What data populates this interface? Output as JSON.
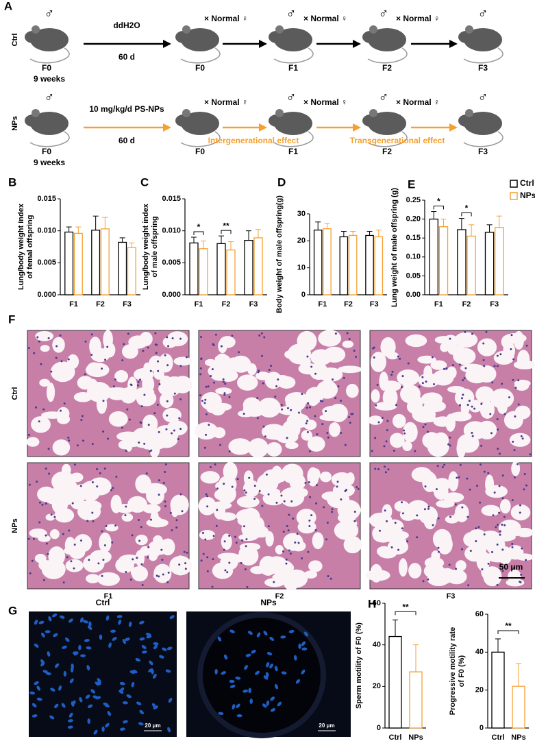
{
  "diagram": {
    "label": "A",
    "male": "♂",
    "cross": "× Normal ♀",
    "rows": [
      {
        "group": "Ctrl",
        "treatment": "ddH2O",
        "duration": "60 d",
        "start": "F0",
        "age": "9 weeks",
        "generations": [
          "F0",
          "F1",
          "F2",
          "F3"
        ]
      },
      {
        "group": "NPs",
        "treatment": "10 mg/kg/d PS-NPs",
        "duration": "60 d",
        "start": "F0",
        "age": "9 weeks",
        "generations": [
          "F0",
          "F1",
          "F2",
          "F3"
        ],
        "effects": [
          "Intergenerational effect",
          "Transgenerational effect"
        ]
      }
    ]
  },
  "chart_data": [
    {
      "type": "bar",
      "label": "B",
      "y_label": [
        "Lung/body weight index",
        "of femal offspring"
      ],
      "categories": [
        "F1",
        "F2",
        "F3"
      ],
      "series": [
        {
          "name": "Ctrl",
          "color": "#000000",
          "values": [
            0.0098,
            0.0101,
            0.0082
          ],
          "errors": [
            0.0008,
            0.0022,
            0.0007
          ]
        },
        {
          "name": "NPs",
          "color": "#f5a030",
          "values": [
            0.0096,
            0.0103,
            0.0074
          ],
          "errors": [
            0.001,
            0.0018,
            0.0007
          ]
        }
      ],
      "ylim": [
        0,
        0.015
      ],
      "yticks": [
        {
          "value": 0,
          "label": "0.000"
        },
        {
          "value": 0.005,
          "label": "0.005"
        },
        {
          "value": 0.01,
          "label": "0.010"
        },
        {
          "value": 0.015,
          "label": "0.015"
        }
      ]
    },
    {
      "type": "bar",
      "label": "C",
      "y_label": [
        "Lung/body weight index",
        "of male offspring"
      ],
      "categories": [
        "F1",
        "F2",
        "F3"
      ],
      "series": [
        {
          "name": "Ctrl",
          "color": "#000000",
          "values": [
            0.0081,
            0.008,
            0.0085
          ],
          "errors": [
            0.0009,
            0.0012,
            0.0015
          ]
        },
        {
          "name": "NPs",
          "color": "#f5a030",
          "values": [
            0.0072,
            0.007,
            0.0089
          ],
          "errors": [
            0.0012,
            0.0013,
            0.0013
          ]
        }
      ],
      "significance": [
        "*",
        "**",
        null
      ],
      "ylim": [
        0,
        0.015
      ],
      "yticks": [
        {
          "value": 0,
          "label": "0.000"
        },
        {
          "value": 0.005,
          "label": "0.005"
        },
        {
          "value": 0.01,
          "label": "0.010"
        },
        {
          "value": 0.015,
          "label": "0.015"
        }
      ]
    },
    {
      "type": "bar",
      "label": "D",
      "y_label": [
        "Body weight of male offspring(g)"
      ],
      "categories": [
        "F1",
        "F2",
        "F3"
      ],
      "series": [
        {
          "name": "Ctrl",
          "color": "#000000",
          "values": [
            24,
            21.5,
            22
          ],
          "errors": [
            3,
            2,
            1.5
          ]
        },
        {
          "name": "NPs",
          "color": "#f5a030",
          "values": [
            24.5,
            22,
            21.5
          ],
          "errors": [
            2,
            1.5,
            2.5
          ]
        }
      ],
      "ylim": [
        0,
        30
      ],
      "yticks": [
        0,
        10,
        20,
        30
      ]
    },
    {
      "type": "bar",
      "label": "E",
      "y_label": [
        "Lung weight of male offspring (g)"
      ],
      "categories": [
        "F1",
        "F2",
        "F3"
      ],
      "series": [
        {
          "name": "Ctrl",
          "color": "#000000",
          "values": [
            0.2,
            0.172,
            0.165
          ],
          "errors": [
            0.02,
            0.03,
            0.02
          ]
        },
        {
          "name": "NPs",
          "color": "#f5a030",
          "values": [
            0.18,
            0.155,
            0.178
          ],
          "errors": [
            0.02,
            0.03,
            0.03
          ]
        }
      ],
      "significance": [
        "*",
        "*",
        null
      ],
      "legend": "top-right",
      "ylim": [
        0,
        0.25
      ],
      "yticks": [
        {
          "value": 0,
          "label": "0.00"
        },
        {
          "value": 0.05,
          "label": "0.05"
        },
        {
          "value": 0.1,
          "label": "0.10"
        },
        {
          "value": 0.15,
          "label": "0.15"
        },
        {
          "value": 0.2,
          "label": "0.20"
        },
        {
          "value": 0.25,
          "label": "0.25"
        }
      ]
    },
    {
      "type": "pairbar",
      "label": "H",
      "y_label": [
        "Sperm motility of F0 (%)"
      ],
      "categories": [
        "Ctrl",
        "NPs"
      ],
      "values": [
        44,
        27
      ],
      "errors": [
        8,
        13
      ],
      "colors": [
        "#000000",
        "#f5a030"
      ],
      "significance": "**",
      "ylim": [
        0,
        60
      ],
      "yticks": [
        0,
        20,
        40,
        60
      ]
    },
    {
      "type": "pairbar",
      "y_label": [
        "Progressive motility rate",
        "of F0 (%)"
      ],
      "categories": [
        "Ctrl",
        "NPs"
      ],
      "values": [
        40,
        22
      ],
      "errors": [
        7,
        12
      ],
      "colors": [
        "#000000",
        "#f5a030"
      ],
      "significance": "**",
      "ylim": [
        0,
        60
      ],
      "yticks": [
        0,
        20,
        40,
        60
      ]
    }
  ],
  "histology": {
    "label": "F",
    "rows": [
      "Ctrl",
      "NPs"
    ],
    "columns": [
      "F1",
      "F2",
      "F3"
    ],
    "scale": "50 μm"
  },
  "fluorescence": {
    "label": "G",
    "columns": [
      "Ctrl",
      "NPs"
    ],
    "scale": "20 μm"
  }
}
